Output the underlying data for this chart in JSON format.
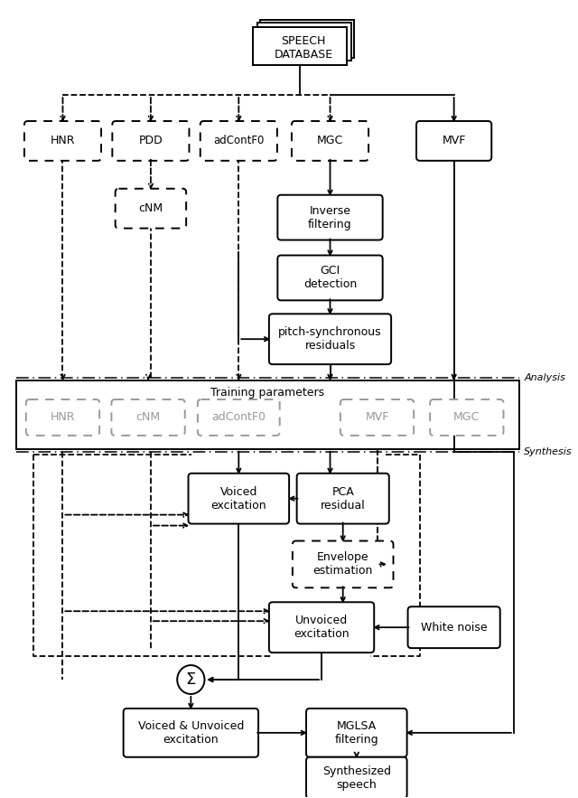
{
  "fig_width": 6.4,
  "fig_height": 8.83,
  "bg_color": "#ffffff",
  "analysis_label": "Analysis",
  "synthesis_label": "Synthesis",
  "training_label": "Training parameters"
}
